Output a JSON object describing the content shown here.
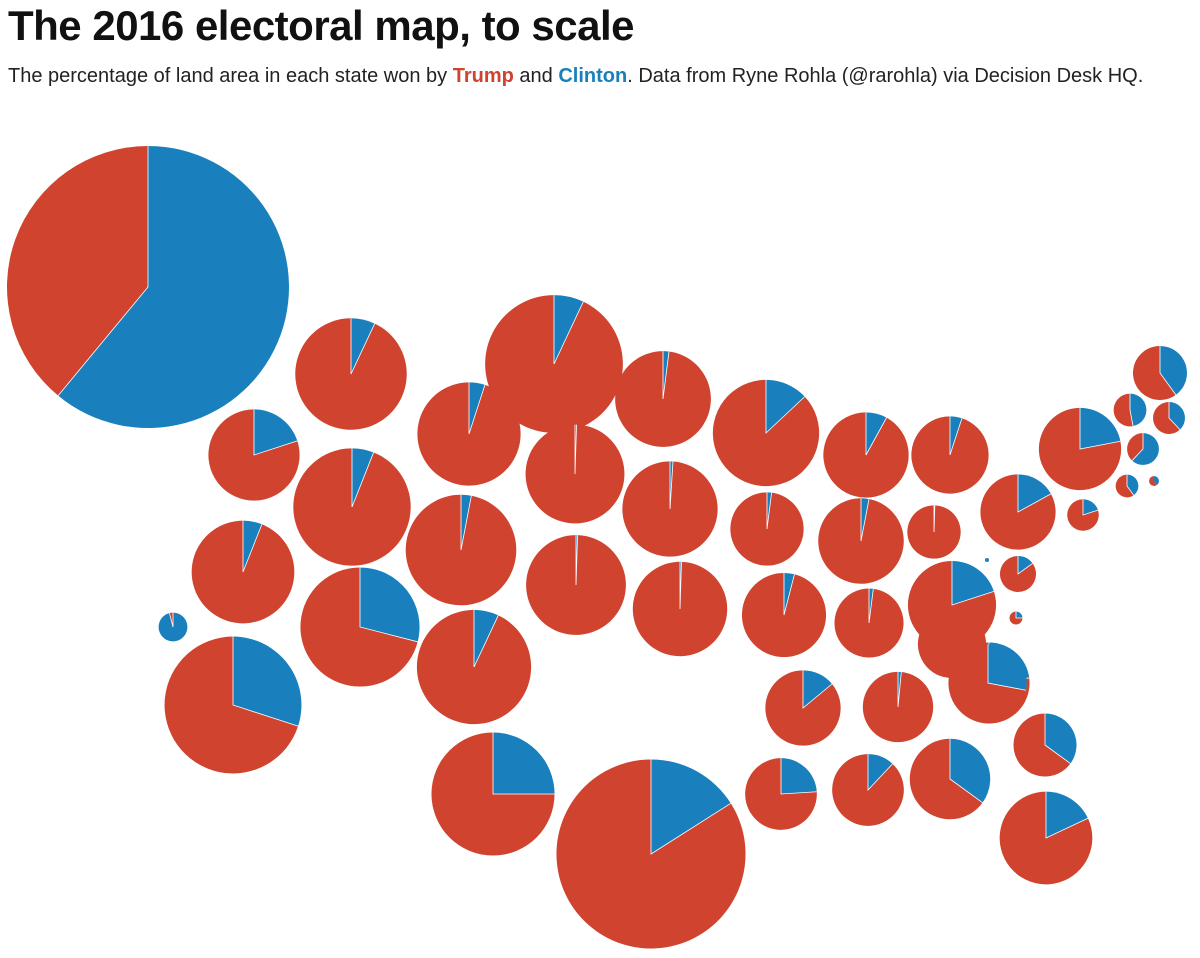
{
  "header": {
    "title": "The 2016 electoral map, to scale",
    "subtitle_pre": "The percentage of land area in each state won by ",
    "trump_label": "Trump",
    "and": " and ",
    "clinton_label": "Clinton",
    "subtitle_post": ". Data from Ryne Rohla (@rarohla) via Decision Desk HQ."
  },
  "colors": {
    "trump": "#d0432f",
    "clinton": "#1980bd",
    "background": "#ffffff",
    "text": "#222222"
  },
  "chart_data": {
    "type": "pie",
    "description_units": "clinton = fraction of a state's land area won by Clinton; size = relative land area of the state (Alaska = 1.0)",
    "states": [
      {
        "id": "AK",
        "clinton": 0.61,
        "size": 1.0
      },
      {
        "id": "HI",
        "clinton": 0.96,
        "size": 0.0104
      },
      {
        "id": "WA",
        "clinton": 0.2,
        "size": 0.1045
      },
      {
        "id": "OR",
        "clinton": 0.07,
        "size": 0.1562
      },
      {
        "id": "CA",
        "clinton": 0.3,
        "size": 0.2356
      },
      {
        "id": "ID",
        "clinton": 0.06,
        "size": 0.1325
      },
      {
        "id": "NV",
        "clinton": 0.06,
        "size": 0.1732
      },
      {
        "id": "UT",
        "clinton": 0.05,
        "size": 0.1339
      },
      {
        "id": "AZ",
        "clinton": 0.29,
        "size": 0.1784
      },
      {
        "id": "MT",
        "clinton": 0.07,
        "size": 0.2386
      },
      {
        "id": "WY",
        "clinton": 0.03,
        "size": 0.1537
      },
      {
        "id": "CO",
        "clinton": 0.07,
        "size": 0.164
      },
      {
        "id": "NM",
        "clinton": 0.25,
        "size": 0.1905
      },
      {
        "id": "ND",
        "clinton": 0.02,
        "size": 0.1152
      },
      {
        "id": "SD",
        "clinton": 0.005,
        "size": 0.1229
      },
      {
        "id": "NE",
        "clinton": 0.005,
        "size": 0.1252
      },
      {
        "id": "KS",
        "clinton": 0.01,
        "size": 0.1141
      },
      {
        "id": "OK",
        "clinton": 0.005,
        "size": 0.112
      },
      {
        "id": "TX",
        "clinton": 0.16,
        "size": 0.4495
      },
      {
        "id": "MN",
        "clinton": 0.13,
        "size": 0.1421
      },
      {
        "id": "IA",
        "clinton": 0.02,
        "size": 0.0675
      },
      {
        "id": "MO",
        "clinton": 0.04,
        "size": 0.0889
      },
      {
        "id": "AR",
        "clinton": 0.14,
        "size": 0.0713
      },
      {
        "id": "LA",
        "clinton": 0.24,
        "size": 0.0646
      },
      {
        "id": "WI",
        "clinton": 0.08,
        "size": 0.0915
      },
      {
        "id": "IL",
        "clinton": 0.03,
        "size": 0.0919
      },
      {
        "id": "IN",
        "clinton": 0.02,
        "size": 0.06
      },
      {
        "id": "KY",
        "clinton": 0.015,
        "size": 0.0622
      },
      {
        "id": "TN",
        "clinton": 0.12,
        "size": 0.0646
      },
      {
        "id": "MS",
        "clinton": 0.35,
        "size": 0.0814
      },
      {
        "id": "AL",
        "clinton": 0.23,
        "size": 0.0827
      },
      {
        "id": "MI",
        "clinton": 0.04,
        "size": 0.0823
      },
      {
        "id": "OH",
        "clinton": 0.03,
        "size": 0.0584
      },
      {
        "id": "WV",
        "clinton": 0.005,
        "size": 0.0358
      },
      {
        "id": "VA",
        "clinton": 0.17,
        "size": 0.0711
      },
      {
        "id": "NC",
        "clinton": 0.28,
        "size": 0.0754
      },
      {
        "id": "SC",
        "clinton": 0.35,
        "size": 0.0499
      },
      {
        "id": "GA",
        "clinton": 0.2,
        "size": 0.0976
      },
      {
        "id": "FL",
        "clinton": 0.18,
        "size": 0.108
      },
      {
        "id": "PA",
        "clinton": 0.05,
        "size": 0.0751
      },
      {
        "id": "NY",
        "clinton": 0.22,
        "size": 0.0851
      },
      {
        "id": "NJ",
        "clinton": 0.2,
        "size": 0.0125
      },
      {
        "id": "MD",
        "clinton": 0.15,
        "size": 0.0163
      },
      {
        "id": "DE",
        "clinton": 0.25,
        "size": 0.0021
      },
      {
        "id": "DC",
        "clinton": 1.0,
        "size": 3e-05
      },
      {
        "id": "CT",
        "clinton": 0.4,
        "size": 0.0065
      },
      {
        "id": "RI",
        "clinton": 0.4,
        "size": 0.0012
      },
      {
        "id": "MA",
        "clinton": 0.62,
        "size": 0.0127
      },
      {
        "id": "VT",
        "clinton": 0.47,
        "size": 0.0135
      },
      {
        "id": "NH",
        "clinton": 0.38,
        "size": 0.0128
      },
      {
        "id": "ME",
        "clinton": 0.4,
        "size": 0.0367
      }
    ]
  }
}
